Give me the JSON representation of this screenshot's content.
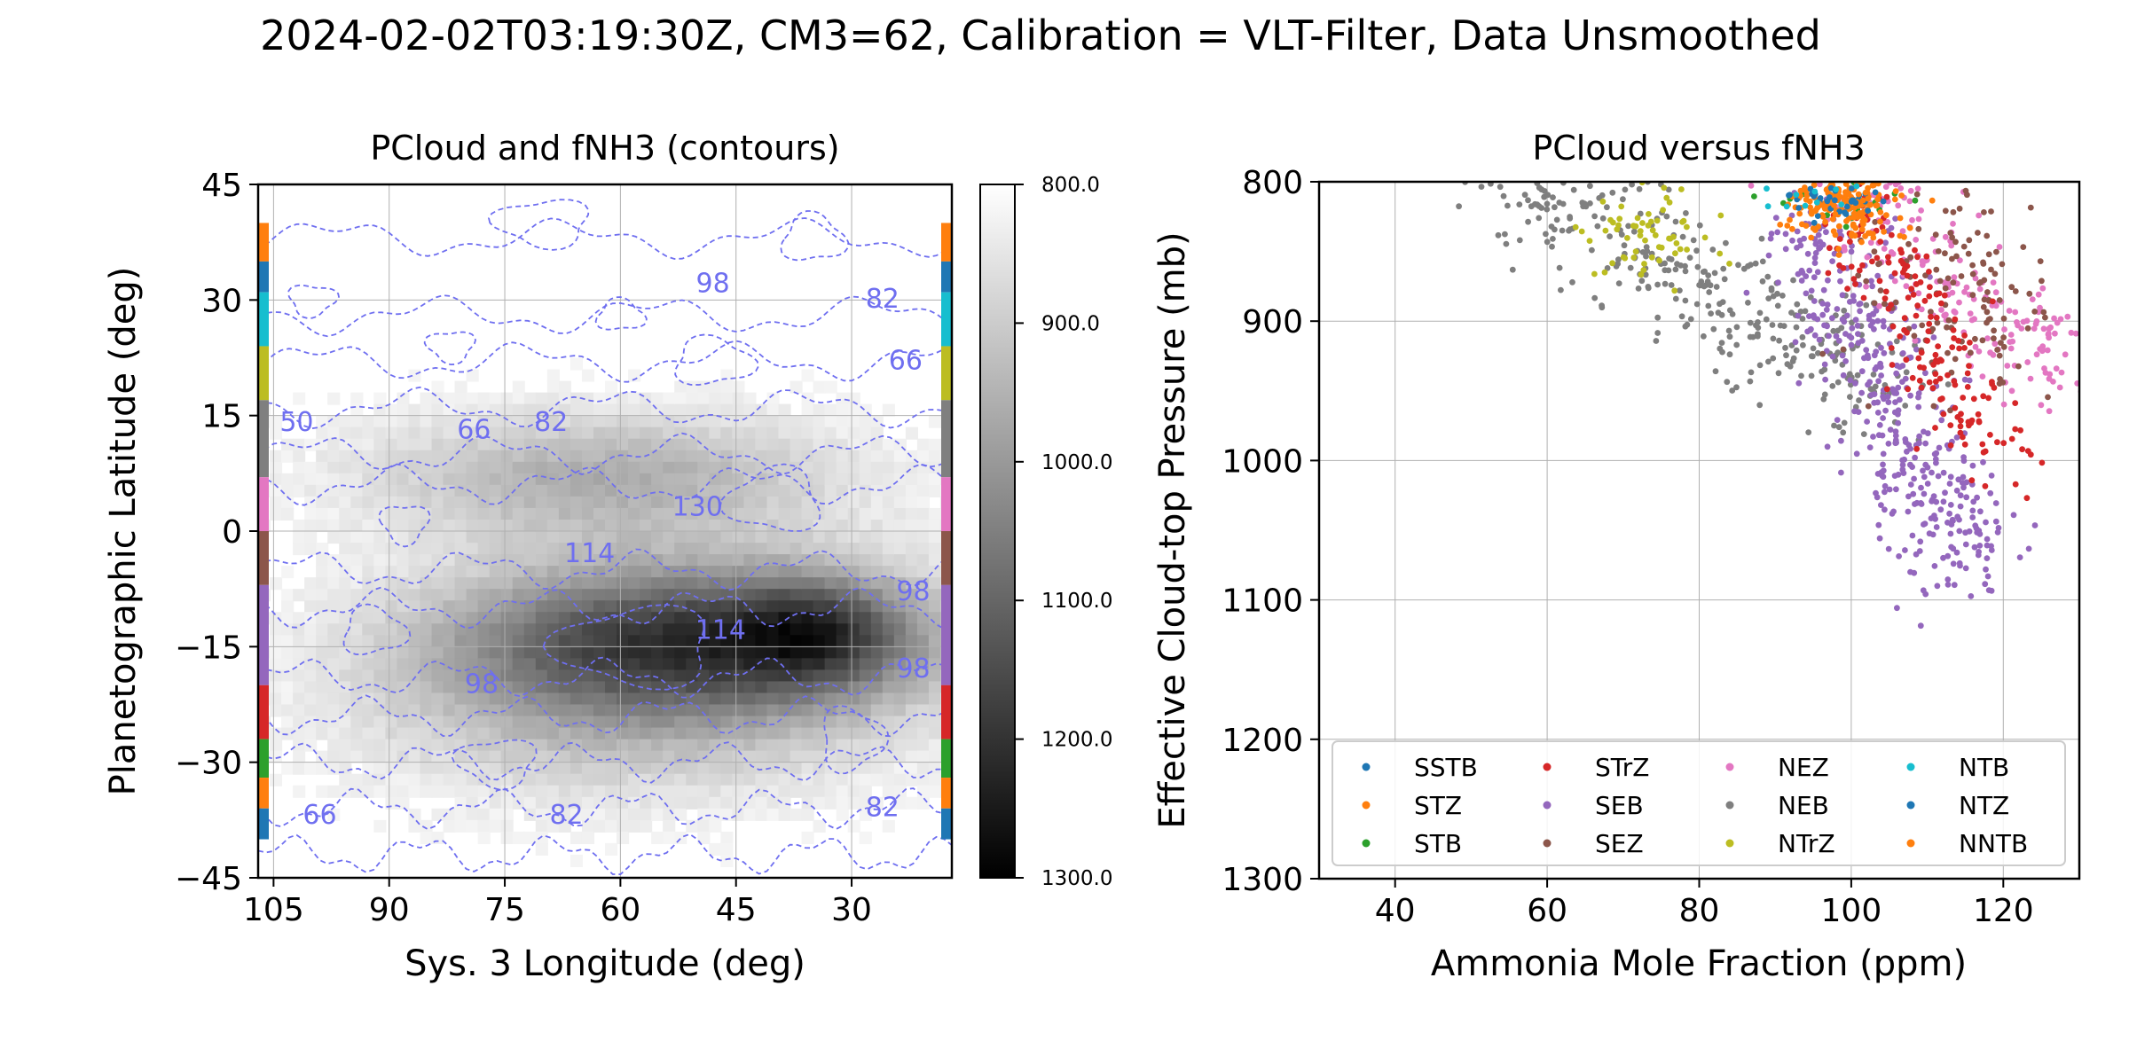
{
  "suptitle": "2024-02-02T03:19:30Z, CM3=62, Calibration = VLT-Filter, Data Unsmoothed",
  "chart_data": [
    {
      "type": "heatmap",
      "title": "PCloud and fNH3 (contours)",
      "xlabel": "Sys. 3 Longitude (deg)",
      "ylabel": "Planetographic Latitude (deg)",
      "xlim": [
        107,
        17
      ],
      "ylim": [
        -45,
        45
      ],
      "xticks": [
        "105",
        "90",
        "75",
        "60",
        "45",
        "30"
      ],
      "xtick_values": [
        105,
        90,
        75,
        60,
        45,
        30
      ],
      "yticks": [
        "45",
        "30",
        "15",
        "0",
        "−15",
        "−30",
        "−45"
      ],
      "ytick_values": [
        45,
        30,
        15,
        0,
        -15,
        -30,
        -45
      ],
      "grid": true,
      "heatmap_variable": "Effective cloud-top pressure (mb)",
      "heatmap_blobs": [
        {
          "lon": 52,
          "lat": -14,
          "sigma_lon": 22,
          "sigma_lat": 7,
          "pressure": 1175
        },
        {
          "lon": 62,
          "lat": 7,
          "sigma_lon": 22,
          "sigma_lat": 6,
          "pressure": 960
        },
        {
          "lon": 60,
          "lat": -25,
          "sigma_lon": 25,
          "sigma_lat": 8,
          "pressure": 900
        },
        {
          "lon": 34,
          "lat": -13,
          "sigma_lon": 8,
          "sigma_lat": 5,
          "pressure": 980
        }
      ],
      "contour_labels": [
        {
          "text": "98",
          "lon": 48,
          "lat": 31
        },
        {
          "text": "82",
          "lon": 26,
          "lat": 29
        },
        {
          "text": "66",
          "lon": 23,
          "lat": 21
        },
        {
          "text": "50",
          "lon": 102,
          "lat": 13
        },
        {
          "text": "66",
          "lon": 79,
          "lat": 12
        },
        {
          "text": "82",
          "lon": 69,
          "lat": 13
        },
        {
          "text": "130",
          "lon": 50,
          "lat": 2
        },
        {
          "text": "114",
          "lon": 64,
          "lat": -4
        },
        {
          "text": "98",
          "lon": 22,
          "lat": -9
        },
        {
          "text": "114",
          "lon": 47,
          "lat": -14
        },
        {
          "text": "98",
          "lon": 22,
          "lat": -19
        },
        {
          "text": "98",
          "lon": 78,
          "lat": -21
        },
        {
          "text": "66",
          "lon": 99,
          "lat": -38
        },
        {
          "text": "82",
          "lon": 67,
          "lat": -38
        },
        {
          "text": "82",
          "lon": 26,
          "lat": -37
        }
      ],
      "contour_levels": [
        66,
        82,
        98,
        114,
        130
      ],
      "contour_color": "#6f6ff0",
      "band_edge_colors": [
        {
          "lat0": 35,
          "lat1": 40,
          "color": "#ff7f0e"
        },
        {
          "lat0": 31,
          "lat1": 35,
          "color": "#1f77b4"
        },
        {
          "lat0": 24,
          "lat1": 31,
          "color": "#17becf"
        },
        {
          "lat0": 17,
          "lat1": 24,
          "color": "#bcbd22"
        },
        {
          "lat0": 7,
          "lat1": 17,
          "color": "#7f7f7f"
        },
        {
          "lat0": 0,
          "lat1": 7,
          "color": "#e377c2"
        },
        {
          "lat0": -7,
          "lat1": 0,
          "color": "#8c564b"
        },
        {
          "lat0": -20,
          "lat1": -7,
          "color": "#9467bd"
        },
        {
          "lat0": -27,
          "lat1": -20,
          "color": "#d62728"
        },
        {
          "lat0": -32,
          "lat1": -27,
          "color": "#2ca02c"
        },
        {
          "lat0": -36,
          "lat1": -32,
          "color": "#ff7f0e"
        },
        {
          "lat0": -40,
          "lat1": -36,
          "color": "#1f77b4"
        }
      ],
      "colorbar": {
        "ticks": [
          "800.0",
          "900.0",
          "1000.0",
          "1100.0",
          "1200.0",
          "1300.0"
        ],
        "tick_values": [
          800,
          900,
          1000,
          1100,
          1200,
          1300
        ],
        "range": [
          800,
          1300
        ]
      }
    },
    {
      "type": "scatter",
      "title": "PCloud versus fNH3",
      "xlabel": "Ammonia Mole Fraction (ppm)",
      "ylabel": "Effective Cloud-top Pressure (mb)",
      "xlim": [
        30,
        130
      ],
      "ylim": [
        1300,
        800
      ],
      "xticks": [
        "40",
        "60",
        "80",
        "100",
        "120"
      ],
      "xtick_values": [
        40,
        60,
        80,
        100,
        120
      ],
      "yticks": [
        "800",
        "900",
        "1000",
        "1100",
        "1200",
        "1300"
      ],
      "ytick_values": [
        800,
        900,
        1000,
        1100,
        1200,
        1300
      ],
      "grid": true,
      "legend_position": "lower-center",
      "series": [
        {
          "name": "SSTB",
          "color": "#1f77b4",
          "cloud": {
            "cx": 98,
            "cy": 815,
            "sx": 3,
            "sy": 8,
            "n": 25
          }
        },
        {
          "name": "STZ",
          "color": "#ff7f0e",
          "cloud": {
            "cx": 99,
            "cy": 820,
            "sx": 4,
            "sy": 12,
            "n": 140
          }
        },
        {
          "name": "STB",
          "color": "#2ca02c",
          "cloud": {
            "cx": 97,
            "cy": 818,
            "sx": 5,
            "sy": 10,
            "n": 20
          }
        },
        {
          "name": "STrZ",
          "color": "#d62728",
          "cloud": {
            "cx": 110,
            "cy": 930,
            "sx": 6,
            "sy": 50,
            "n": 170
          }
        },
        {
          "name": "SEB",
          "color": "#9467bd",
          "cloud": {
            "cx": 107,
            "cy": 990,
            "sx": 6,
            "sy": 60,
            "n": 420
          }
        },
        {
          "name": "SEZ",
          "color": "#8c564b",
          "cloud": {
            "cx": 114,
            "cy": 880,
            "sx": 6,
            "sy": 35,
            "n": 120
          }
        },
        {
          "name": "NEZ",
          "color": "#e377c2",
          "cloud": {
            "cx": 117,
            "cy": 860,
            "sx": 7,
            "sy": 45,
            "n": 190
          }
        },
        {
          "name": "NEB",
          "color": "#7f7f7f",
          "cloud": {
            "cx": 76,
            "cy": 880,
            "sx": 12,
            "sy": 45,
            "n": 320
          }
        },
        {
          "name": "NTrZ",
          "color": "#bcbd22",
          "cloud": {
            "cx": 73,
            "cy": 840,
            "sx": 4,
            "sy": 18,
            "n": 60
          }
        },
        {
          "name": "NTB",
          "color": "#17becf",
          "cloud": {
            "cx": 97,
            "cy": 810,
            "sx": 4,
            "sy": 5,
            "n": 10
          }
        },
        {
          "name": "NTZ",
          "color": "#1f77b4",
          "cloud": {
            "cx": 98,
            "cy": 808,
            "sx": 3,
            "sy": 5,
            "n": 10
          }
        },
        {
          "name": "NNTB",
          "color": "#ff7f0e",
          "cloud": {
            "cx": 98,
            "cy": 812,
            "sx": 3,
            "sy": 6,
            "n": 20
          }
        }
      ]
    }
  ]
}
